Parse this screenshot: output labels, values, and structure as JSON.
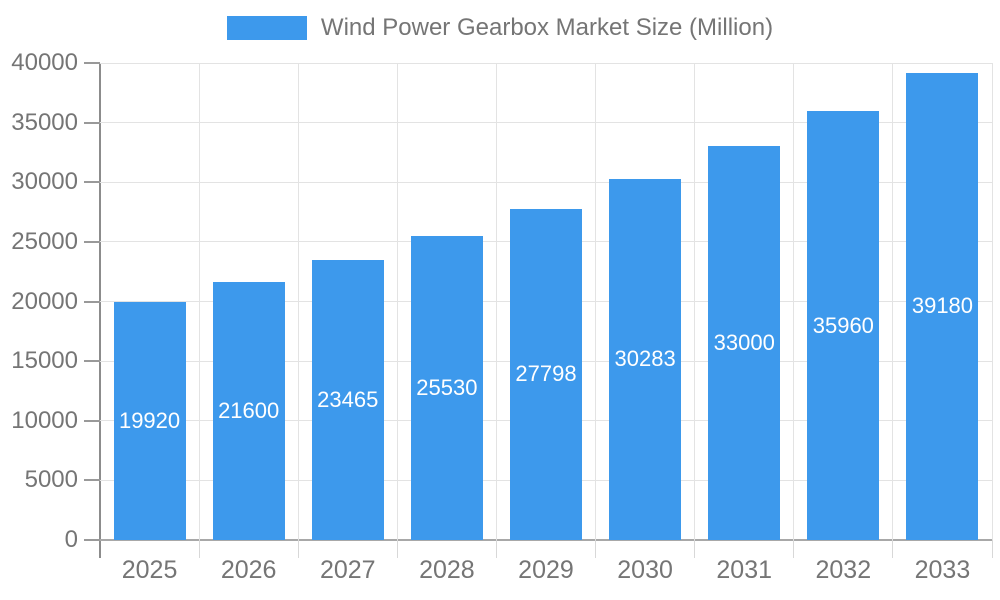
{
  "legend": {
    "label": "Wind Power Gearbox Market Size (Million)"
  },
  "chart_data": {
    "type": "bar",
    "title": "Wind Power Gearbox Market Size (Million)",
    "categories": [
      "2025",
      "2026",
      "2027",
      "2028",
      "2029",
      "2030",
      "2031",
      "2032",
      "2033"
    ],
    "values": [
      19920,
      21600,
      23465,
      25530,
      27798,
      30283,
      33000,
      35960,
      39180
    ],
    "series": [
      {
        "name": "Wind Power Gearbox Market Size (Million)",
        "values": [
          19920,
          21600,
          23465,
          25530,
          27798,
          30283,
          33000,
          35960,
          39180
        ]
      }
    ],
    "xlabel": "",
    "ylabel": "",
    "ylim": [
      0,
      40000
    ],
    "ytick_step": 5000,
    "yticks": [
      0,
      5000,
      10000,
      15000,
      20000,
      25000,
      30000,
      35000,
      40000
    ],
    "grid": true,
    "legend_position": "top",
    "value_label_style": "inside-center-white"
  },
  "colors": {
    "bar": "#3D99EC",
    "grid": "#E3E3E3",
    "axis_y": "#8C8C8C",
    "axis_x": "#A8A8A8",
    "tick_y": "#999999",
    "tick_x": "#D8D8D8",
    "text": "#757575",
    "value_label": "#FFFFFF",
    "background": "#FFFFFF"
  }
}
